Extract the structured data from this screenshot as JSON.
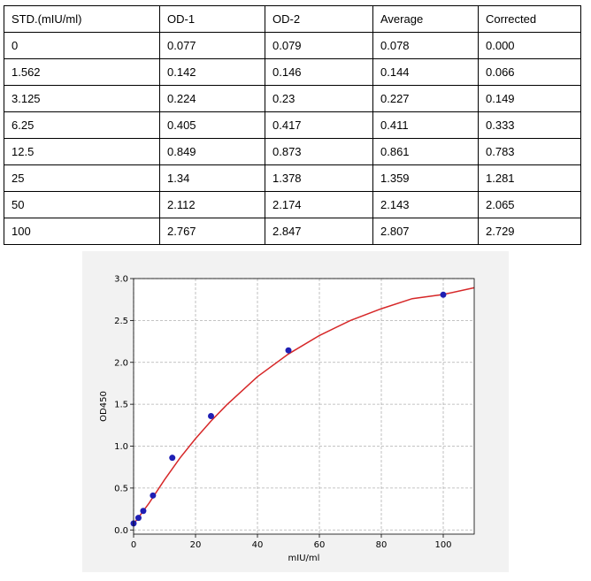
{
  "table": {
    "headers": [
      "STD.(mIU/ml)",
      "OD-1",
      "OD-2",
      "Average",
      "Corrected"
    ],
    "rows": [
      [
        "0",
        "0.077",
        "0.079",
        "0.078",
        "0.000"
      ],
      [
        "1.562",
        "0.142",
        "0.146",
        "0.144",
        "0.066"
      ],
      [
        "3.125",
        "0.224",
        "0.23",
        "0.227",
        "0.149"
      ],
      [
        "6.25",
        "0.405",
        "0.417",
        "0.411",
        "0.333"
      ],
      [
        "12.5",
        "0.849",
        "0.873",
        "0.861",
        "0.783"
      ],
      [
        "25",
        "1.34",
        "1.378",
        "1.359",
        "1.281"
      ],
      [
        "50",
        "2.112",
        "2.174",
        "2.143",
        "2.065"
      ],
      [
        "100",
        "2.767",
        "2.847",
        "2.807",
        "2.729"
      ]
    ]
  },
  "chart_data": {
    "type": "scatter",
    "title": "",
    "xlabel": "mIU/ml",
    "ylabel": "OD450",
    "xlim": [
      0,
      110
    ],
    "ylim": [
      -0.05,
      3.0
    ],
    "xticks": [
      0,
      20,
      40,
      60,
      80,
      100
    ],
    "yticks": [
      0.0,
      0.5,
      1.0,
      1.5,
      2.0,
      2.5,
      3.0
    ],
    "xtick_labels": [
      "0",
      "20",
      "40",
      "60",
      "80",
      "100"
    ],
    "ytick_labels": [
      "0.0",
      "0.5",
      "1.0",
      "1.5",
      "2.0",
      "2.5",
      "3.0"
    ],
    "grid": true,
    "points": {
      "x": [
        0,
        1.562,
        3.125,
        6.25,
        12.5,
        25,
        50,
        100
      ],
      "y": [
        0.078,
        0.144,
        0.227,
        0.411,
        0.861,
        1.359,
        2.143,
        2.807
      ],
      "color": "#1f1fb4"
    },
    "fit_curve": {
      "x": [
        0,
        2,
        5,
        10,
        15,
        20,
        25,
        30,
        40,
        50,
        60,
        70,
        80,
        90,
        100,
        110
      ],
      "y": [
        0.07,
        0.17,
        0.32,
        0.6,
        0.86,
        1.09,
        1.3,
        1.49,
        1.83,
        2.1,
        2.32,
        2.5,
        2.64,
        2.76,
        2.81,
        2.89
      ],
      "color": "#d62728"
    }
  }
}
